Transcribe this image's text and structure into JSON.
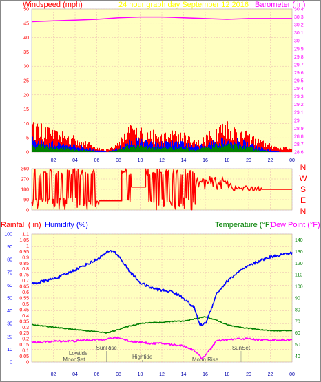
{
  "header": {
    "left_label": "Windspeed (mph)",
    "center_label": "24 hour graph day   September 12 2016",
    "right_label": "Barometer ( in)"
  },
  "bottom_header": {
    "rainfall_label": "Rainfall ( in)",
    "humidity_label": "Humidity (%)",
    "temperature_label": "Temperature (°F)",
    "dewpoint_label": "Dew Point (°F)"
  },
  "direction_letters": [
    "N",
    "W",
    "S",
    "E",
    "N"
  ],
  "events": [
    {
      "label": "Lowtide",
      "hour": 4.3
    },
    {
      "label": "MoonSet",
      "hour": 3.9
    },
    {
      "label": "SunRise",
      "hour": 6.9
    },
    {
      "label": "Hightide",
      "hour": 10.2
    },
    {
      "label": "Moon Rise",
      "hour": 16.0
    },
    {
      "label": "SunSet",
      "hour": 19.3
    }
  ],
  "colors": {
    "plot_bg": "#ffffc0",
    "wind_gust": "#ff0000",
    "wind_avg": "#0000ff",
    "wind_min": "#008000",
    "barometer": "#ff00ff",
    "direction": "#ff0000",
    "humidity": "#0000ff",
    "temperature": "#008000",
    "dewpoint": "#ff00ff",
    "center_header": "#ffff00"
  },
  "chart_data": [
    {
      "type": "line",
      "name": "wind-baro",
      "x_ticks": [
        "02",
        "04",
        "06",
        "08",
        "10",
        "12",
        "14",
        "16",
        "18",
        "20",
        "22",
        "00"
      ],
      "y_left": {
        "label": "Windspeed (mph)",
        "ylim": [
          0,
          50
        ],
        "ticks": [
          0,
          5,
          10,
          15,
          20,
          25,
          30,
          35,
          40,
          45,
          50
        ]
      },
      "y_right": {
        "label": "Barometer ( in)",
        "ylim": [
          28.6,
          30.4
        ],
        "ticks": [
          "28.6",
          "28.7",
          "28.8",
          "28.9",
          "29",
          "29.1",
          "29.2",
          "29.3",
          "29.4",
          "29.5",
          "29.6",
          "29.7",
          "29.8",
          "29.9",
          "30",
          "30.1",
          "30.2",
          "30.3",
          "30.4"
        ]
      },
      "barometer": {
        "x": [
          0,
          2,
          4,
          6,
          8,
          10,
          12,
          14,
          16,
          18,
          20,
          22,
          24
        ],
        "y": [
          30.24,
          30.25,
          30.26,
          30.27,
          30.29,
          30.3,
          30.3,
          30.29,
          30.28,
          30.27,
          30.28,
          30.28,
          30.28
        ]
      },
      "wind_gust_envelope": {
        "x": [
          0,
          1,
          2,
          3,
          4,
          5,
          6,
          7,
          8,
          9,
          10,
          11,
          12,
          13,
          14,
          15,
          16,
          17,
          18,
          19,
          20,
          21,
          22,
          23,
          24
        ],
        "y": [
          11,
          10,
          8,
          7,
          6,
          4,
          2,
          1,
          4,
          10,
          9,
          8,
          7,
          8,
          7,
          5,
          6,
          10,
          12,
          9,
          7,
          5,
          3,
          2,
          2
        ]
      },
      "wind_avg_envelope": {
        "x": [
          0,
          1,
          2,
          3,
          4,
          5,
          6,
          7,
          8,
          9,
          10,
          11,
          12,
          13,
          14,
          15,
          16,
          17,
          18,
          19,
          20,
          21,
          22,
          23,
          24
        ],
        "y": [
          6,
          5,
          4,
          3,
          3,
          2,
          1,
          0,
          2,
          5,
          5,
          4,
          4,
          4,
          4,
          3,
          3,
          5,
          6,
          5,
          4,
          2,
          1,
          0,
          0
        ]
      },
      "wind_min_envelope": {
        "x": [
          0,
          1,
          2,
          3,
          4,
          5,
          6,
          7,
          8,
          9,
          10,
          11,
          12,
          13,
          14,
          15,
          16,
          17,
          18,
          19,
          20,
          21,
          22,
          23,
          24
        ],
        "y": [
          3,
          3,
          2,
          2,
          1,
          1,
          0,
          0,
          1,
          3,
          3,
          2,
          2,
          2,
          2,
          1,
          2,
          3,
          3,
          3,
          2,
          1,
          0,
          0,
          0
        ]
      }
    },
    {
      "type": "line",
      "name": "wind-direction",
      "y_left": {
        "ylim": [
          0,
          360
        ],
        "ticks": [
          0,
          90,
          180,
          270,
          360
        ]
      },
      "segments": [
        {
          "x": [
            0,
            1.1
          ],
          "mode": "noisy"
        },
        {
          "x": [
            1.1,
            1.3
          ],
          "mode": "flat",
          "y": 330
        },
        {
          "x": [
            1.3,
            6.2
          ],
          "mode": "noisy"
        },
        {
          "x": [
            6.2,
            8.3
          ],
          "mode": "flat",
          "y": 80
        },
        {
          "x": [
            8.3,
            9.2
          ],
          "mode": "noisy"
        },
        {
          "x": [
            9.2,
            10.5
          ],
          "mode": "flat",
          "y": 200
        },
        {
          "x": [
            10.5,
            15.1
          ],
          "mode": "noisy"
        },
        {
          "x": [
            15.1,
            18.5
          ],
          "mode": "band",
          "y": [
            180,
            290
          ]
        },
        {
          "x": [
            18.5,
            21.2
          ],
          "mode": "band",
          "y": [
            165,
            210
          ]
        },
        {
          "x": [
            21.2,
            24
          ],
          "mode": "flat",
          "y": 180
        }
      ]
    },
    {
      "type": "line",
      "name": "humidity-temp",
      "y_left": {
        "label": "Rainfall ( in)",
        "ylim": [
          0,
          1.1
        ],
        "ticks": [
          "0",
          "0.05",
          "0.1",
          "0.15",
          "0.2",
          "0.25",
          "0.3",
          "0.35",
          "0.4",
          "0.45",
          "0.5",
          "0.55",
          "0.6",
          "0.65",
          "0.7",
          "0.75",
          "0.8",
          "0.85",
          "0.9",
          "0.95",
          "1",
          "1.05",
          "1.1"
        ]
      },
      "y_humidity": {
        "label": "Humidity (%)",
        "ylim": [
          0,
          100
        ],
        "ticks": [
          0,
          10,
          20,
          30,
          40,
          50,
          60,
          70,
          80,
          90,
          100
        ]
      },
      "y_right": {
        "label": "Temperature (°F)",
        "ylim": [
          35,
          145
        ],
        "ticks": [
          40,
          50,
          60,
          70,
          80,
          90,
          100,
          110,
          120,
          130,
          140
        ]
      },
      "humidity": {
        "x": [
          0,
          1,
          2,
          3,
          4,
          5,
          6,
          7,
          7.5,
          8,
          9,
          10,
          11,
          12,
          13,
          14,
          15,
          15.5,
          16,
          16.5,
          17,
          18,
          19,
          20,
          21,
          22,
          23,
          24
        ],
        "y": [
          61,
          63,
          65,
          68,
          72,
          76,
          80,
          86,
          87,
          83,
          71,
          62,
          58,
          56,
          55,
          50,
          42,
          29,
          30,
          40,
          53,
          63,
          70,
          75,
          79,
          82,
          84,
          85
        ]
      },
      "temperature": {
        "x": [
          0,
          1,
          2,
          3,
          4,
          5,
          6,
          7,
          8,
          9,
          10,
          11,
          12,
          13,
          14,
          15,
          16,
          17,
          18,
          19,
          20,
          21,
          22,
          23,
          24
        ],
        "y": [
          67,
          66,
          65,
          64,
          63,
          62,
          61,
          60,
          63,
          66,
          68,
          69,
          69,
          70,
          70,
          72,
          74,
          71,
          67,
          65,
          64,
          63,
          62,
          62,
          62
        ]
      },
      "dewpoint": {
        "x": [
          0,
          1,
          2,
          3,
          4,
          5,
          6,
          7,
          8,
          9,
          10,
          11,
          12,
          13,
          14,
          15,
          15.7,
          16.3,
          17,
          18,
          19,
          20,
          21,
          22,
          23,
          24
        ],
        "y": [
          52,
          52,
          53,
          53,
          53,
          54,
          54,
          55,
          56,
          53,
          52,
          51,
          51,
          50,
          49,
          45,
          38,
          44,
          53,
          54,
          55,
          55,
          54,
          54,
          54,
          54
        ]
      }
    }
  ]
}
